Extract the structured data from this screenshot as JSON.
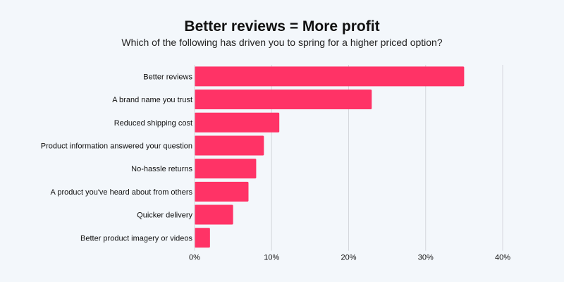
{
  "chart_data": {
    "type": "bar",
    "orientation": "horizontal",
    "title": "Better reviews = More profit",
    "subtitle": "Which of the following has driven you to spring for a higher priced option?",
    "categories": [
      "Better reviews",
      "A brand name you trust",
      "Reduced shipping cost",
      "Product information answered your question",
      "No-hassle returns",
      "A product you've heard about from others",
      "Quicker delivery",
      "Better product imagery or videos"
    ],
    "values": [
      35,
      23,
      11,
      9,
      8,
      7,
      5,
      2
    ],
    "xlim": [
      0,
      40
    ],
    "xticks": [
      0,
      10,
      20,
      30,
      40
    ],
    "xtick_labels": [
      "0%",
      "10%",
      "20%",
      "30%",
      "40%"
    ],
    "xlabel": "",
    "ylabel": "",
    "grid": true,
    "legend": "none",
    "colors": {
      "bar": "#ff3366",
      "grid": "#d4d7dc",
      "background": "#f3f7fb"
    }
  }
}
